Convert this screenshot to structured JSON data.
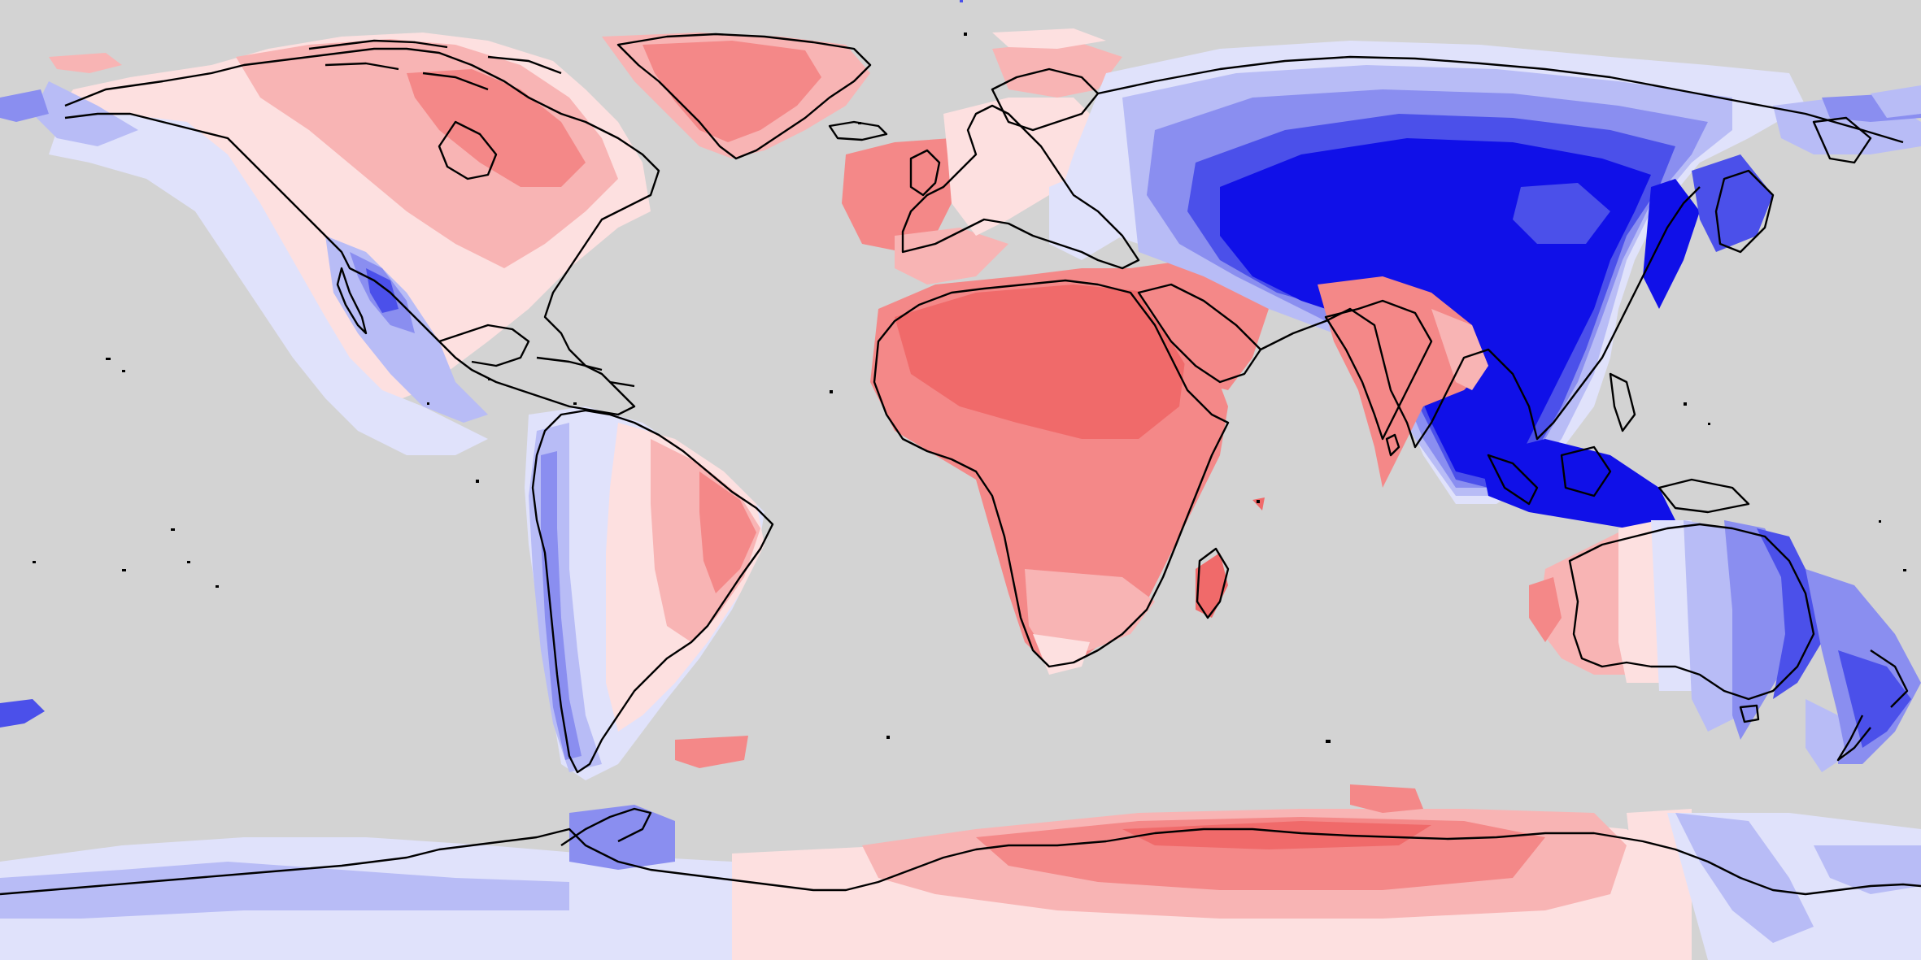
{
  "map": {
    "projection": "equirectangular",
    "background_color": "#d3d3d3",
    "coastline_color": "#000000",
    "palette": {
      "strong_red": "#f06a6a",
      "red": "#f48888",
      "light_red": "#f8b4b4",
      "pale_red": "#fde0e0",
      "white": "#f5f2f2",
      "pale_blue": "#e0e2fb",
      "light_blue": "#b8bcf6",
      "blue": "#8a8ef0",
      "strong_blue": "#4b50ea",
      "deep_blue": "#1010e8"
    }
  }
}
